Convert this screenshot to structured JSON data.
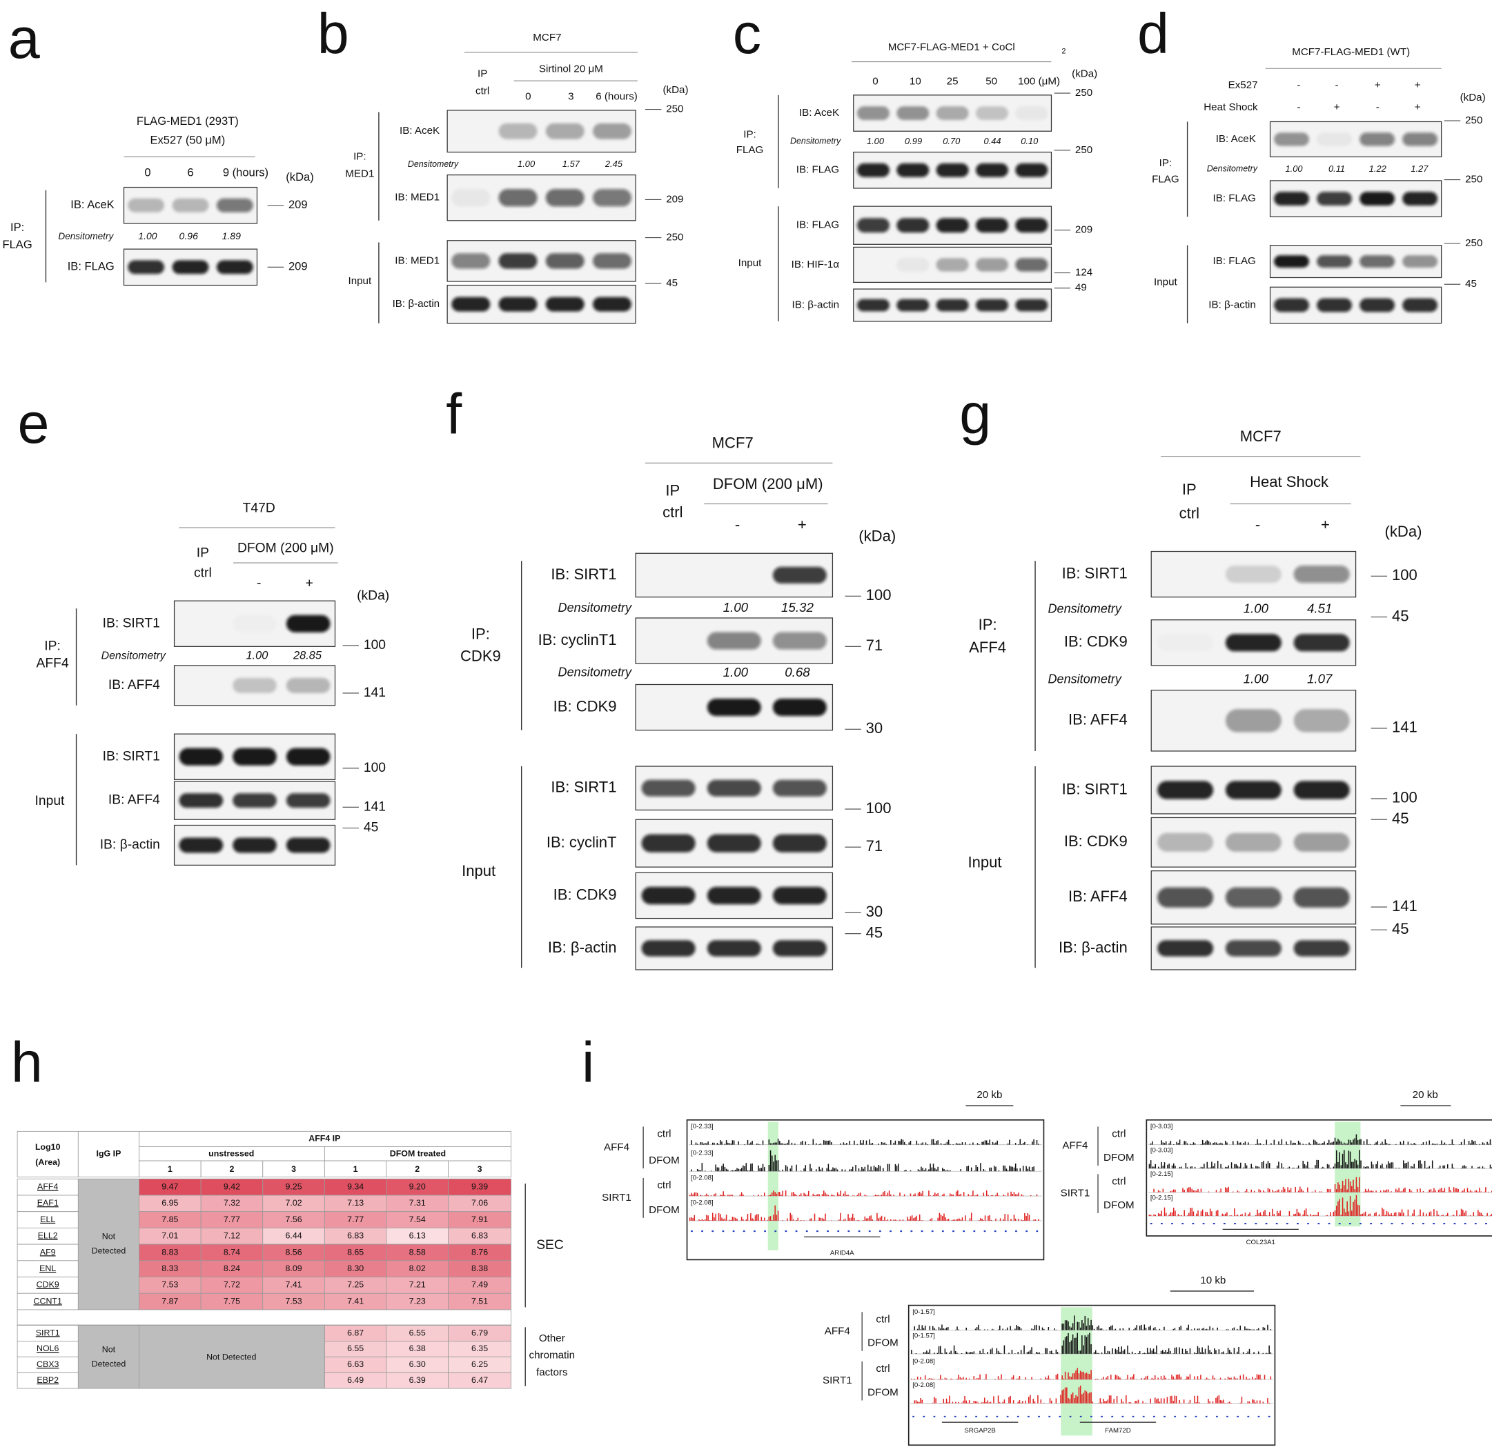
{
  "panels": [
    {
      "letter": "a",
      "header": [
        "FLAG-MED1 (293T)",
        "Ex527 (50 μM)"
      ],
      "lanes": [
        "0",
        "6",
        "9 (hours)"
      ],
      "unit": "(kDa)",
      "groups": [
        [
          "IP:",
          "FLAG"
        ]
      ],
      "blots": [
        "IB: AceK",
        "IB: FLAG"
      ],
      "markers": [
        "209",
        "209"
      ],
      "densitometry": [
        {
          "label": "Densitometry",
          "values": [
            "1.00",
            "0.96",
            "1.89"
          ]
        }
      ]
    },
    {
      "letter": "b",
      "header": [
        "MCF7",
        "IP",
        "ctrl",
        "Sirtinol 20 μM"
      ],
      "lanes": [
        "0",
        "3",
        "6 (hours)"
      ],
      "unit": "(kDa)",
      "groups": [
        [
          "IP:",
          "MED1"
        ],
        [
          "Input"
        ]
      ],
      "blots": [
        "IB: AceK",
        "IB: MED1",
        "IB: MED1",
        "IB: β-actin"
      ],
      "markers": [
        "250",
        "209",
        "250",
        "45"
      ],
      "densitometry": [
        {
          "label": "Densitometry",
          "values": [
            "1.00",
            "1.57",
            "2.45"
          ]
        }
      ]
    },
    {
      "letter": "c",
      "header": [
        "MCF7-FLAG-MED1 + CoCl",
        "2"
      ],
      "lanes": [
        "0",
        "10",
        "25",
        "50",
        "100 (μM)"
      ],
      "unit": "(kDa)",
      "groups": [
        [
          "IP:",
          "FLAG"
        ],
        [
          "Input"
        ]
      ],
      "blots": [
        "IB: AceK",
        "IB: FLAG",
        "IB: FLAG",
        "IB: HIF-1α",
        "IB: β-actin"
      ],
      "markers": [
        "250",
        "250",
        "209",
        "124",
        "49"
      ],
      "densitometry": [
        {
          "label": "Densitometry",
          "values": [
            "1.00",
            "0.99",
            "0.70",
            "0.44",
            "0.10"
          ]
        }
      ]
    },
    {
      "letter": "d",
      "header": [
        "MCF7-FLAG-MED1 (WT)",
        "Ex527",
        "Heat Shock"
      ],
      "conditions": [
        [
          "-",
          "-",
          "+",
          "+"
        ],
        [
          "-",
          "+",
          "-",
          "+"
        ]
      ],
      "unit": "(kDa)",
      "groups": [
        [
          "IP:",
          "FLAG"
        ],
        [
          "Input"
        ]
      ],
      "blots": [
        "IB: AceK",
        "IB: FLAG",
        "IB: FLAG",
        "IB: β-actin"
      ],
      "markers": [
        "250",
        "250",
        "250",
        "45"
      ],
      "densitometry": [
        {
          "label": "Densitometry",
          "values": [
            "1.00",
            "0.11",
            "1.22",
            "1.27"
          ]
        }
      ]
    },
    {
      "letter": "e",
      "header": [
        "T47D",
        "IP",
        "ctrl",
        "DFOM (200 μM)"
      ],
      "lanes": [
        "-",
        "+"
      ],
      "unit": "(kDa)",
      "groups": [
        [
          "IP:",
          "AFF4"
        ],
        [
          "Input"
        ]
      ],
      "blots": [
        "IB: SIRT1",
        "IB: AFF4",
        "IB: SIRT1",
        "IB: AFF4",
        "IB: β-actin"
      ],
      "markers": [
        "100",
        "141",
        "100",
        "141",
        "45"
      ],
      "densitometry": [
        {
          "label": "Densitometry",
          "values": [
            "1.00",
            "28.85"
          ]
        }
      ]
    },
    {
      "letter": "f",
      "header": [
        "MCF7",
        "IP",
        "ctrl",
        "DFOM (200 μM)"
      ],
      "lanes": [
        "-",
        "+"
      ],
      "unit": "(kDa)",
      "groups": [
        [
          "IP:",
          "CDK9"
        ],
        [
          "Input"
        ]
      ],
      "blots": [
        "IB: SIRT1",
        "IB: cyclinT1",
        "IB: CDK9",
        "IB: SIRT1",
        "IB: cyclinT",
        "IB: CDK9",
        "IB: β-actin"
      ],
      "markers": [
        "100",
        "71",
        "30",
        "100",
        "71",
        "30",
        "45"
      ],
      "densitometry": [
        {
          "label": "Densitometry",
          "values": [
            "1.00",
            "15.32"
          ]
        },
        {
          "label": "Densitometry",
          "values": [
            "1.00",
            "0.68"
          ]
        }
      ]
    },
    {
      "letter": "g",
      "header": [
        "MCF7",
        "IP",
        "ctrl",
        "Heat Shock"
      ],
      "lanes": [
        "-",
        "+"
      ],
      "unit": "(kDa)",
      "groups": [
        [
          "IP:",
          "AFF4"
        ],
        [
          "Input"
        ]
      ],
      "blots": [
        "IB: SIRT1",
        "IB: CDK9",
        "IB: AFF4",
        "IB: SIRT1",
        "IB: CDK9",
        "IB: AFF4",
        "IB: β-actin"
      ],
      "markers": [
        "100",
        "45",
        "141",
        "100",
        "45",
        "141",
        "45"
      ],
      "densitometry": [
        {
          "label": "Densitometry",
          "values": [
            "1.00",
            "4.51"
          ]
        },
        {
          "label": "Densitometry",
          "values": [
            "1.00",
            "1.07"
          ]
        }
      ]
    }
  ],
  "table": {
    "letter": "h",
    "corner": [
      "Log10",
      "(Area)"
    ],
    "igg": "IgG IP",
    "aff4": "AFF4 IP",
    "conditions": [
      "unstressed",
      "DFOM treated"
    ],
    "replicates": [
      "1",
      "2",
      "3",
      "1",
      "2",
      "3"
    ],
    "sec": {
      "label": "SEC",
      "igg": [
        "Not",
        "Detected"
      ],
      "rows": [
        {
          "gene": "AFF4",
          "values": [
            "9.47",
            "9.42",
            "9.25",
            "9.34",
            "9.20",
            "9.39"
          ]
        },
        {
          "gene": "EAF1",
          "values": [
            "6.95",
            "7.32",
            "7.02",
            "7.13",
            "7.31",
            "7.06"
          ]
        },
        {
          "gene": "ELL",
          "values": [
            "7.85",
            "7.77",
            "7.56",
            "7.77",
            "7.54",
            "7.91"
          ]
        },
        {
          "gene": "ELL2",
          "values": [
            "7.01",
            "7.12",
            "6.44",
            "6.83",
            "6.13",
            "6.83"
          ]
        },
        {
          "gene": "AF9",
          "values": [
            "8.83",
            "8.74",
            "8.56",
            "8.65",
            "8.58",
            "8.76"
          ]
        },
        {
          "gene": "ENL",
          "values": [
            "8.33",
            "8.24",
            "8.09",
            "8.30",
            "8.02",
            "8.38"
          ]
        },
        {
          "gene": "CDK9",
          "values": [
            "7.53",
            "7.72",
            "7.41",
            "7.25",
            "7.21",
            "7.49"
          ]
        },
        {
          "gene": "CCNT1",
          "values": [
            "7.87",
            "7.75",
            "7.53",
            "7.41",
            "7.23",
            "7.51"
          ]
        }
      ]
    },
    "other": {
      "label": [
        "Other",
        "chromatin",
        "factors"
      ],
      "igg": [
        "Not",
        "Detected"
      ],
      "unstressed": "Not Detected",
      "rows": [
        {
          "gene": "SIRT1",
          "values": [
            "6.87",
            "6.55",
            "6.79"
          ]
        },
        {
          "gene": "NOL6",
          "values": [
            "6.55",
            "6.38",
            "6.35"
          ]
        },
        {
          "gene": "CBX3",
          "values": [
            "6.63",
            "6.30",
            "6.25"
          ]
        },
        {
          "gene": "EBP2",
          "values": [
            "6.49",
            "6.39",
            "6.47"
          ]
        }
      ]
    }
  },
  "browser": {
    "letter": "i",
    "tracks": [
      {
        "scale": "20 kb",
        "factors": [
          "AFF4",
          "SIRT1"
        ],
        "conditions": [
          "ctrl",
          "DFOM",
          "ctrl",
          "DFOM"
        ],
        "ranges": [
          "[0-2.33]",
          "[0-2.33]",
          "[0-2.08]",
          "[0-2.08]"
        ],
        "genes": [
          "ARID4A"
        ]
      },
      {
        "scale": "20 kb",
        "factors": [
          "AFF4",
          "SIRT1"
        ],
        "conditions": [
          "ctrl",
          "DFOM",
          "ctrl",
          "DFOM"
        ],
        "ranges": [
          "[0-3.03]",
          "[0-3.03]",
          "[0-2.15]",
          "[0-2.15]"
        ],
        "genes": [
          "COL23A1"
        ]
      },
      {
        "scale": "10 kb",
        "factors": [
          "AFF4",
          "SIRT1"
        ],
        "conditions": [
          "ctrl",
          "DFOM",
          "ctrl",
          "DFOM"
        ],
        "ranges": [
          "[0-1.57]",
          "[0-1.57]",
          "[0-2.08]",
          "[0-2.08]"
        ],
        "genes": [
          "SRGAP2B",
          "FAM72D"
        ]
      }
    ]
  }
}
